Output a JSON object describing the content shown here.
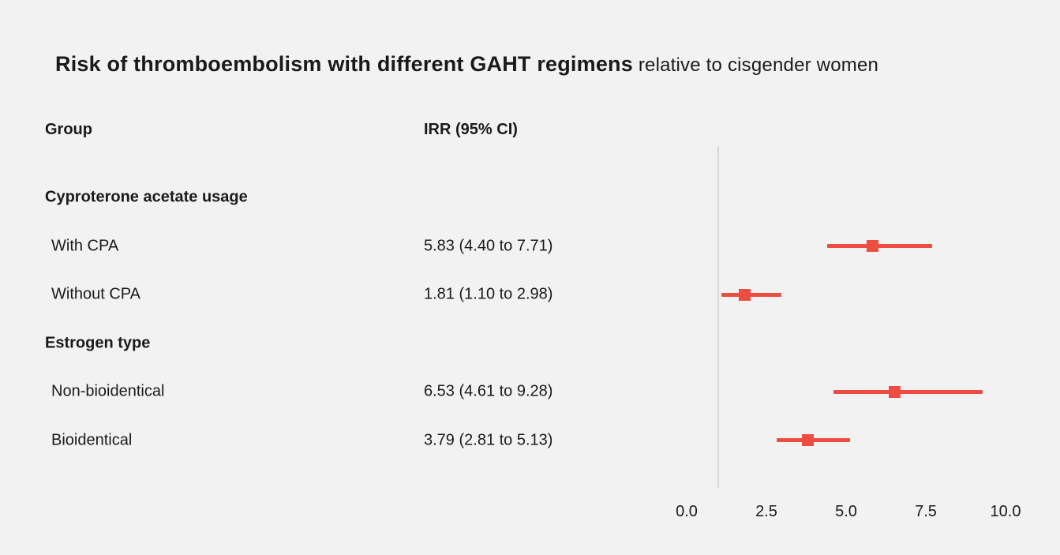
{
  "title": {
    "main": "Risk of thromboembolism with different GAHT regimens",
    "suffix": " relative to cisgender women"
  },
  "columns": {
    "group": "Group",
    "irr": "IRR (95% CI)"
  },
  "chart_data": {
    "type": "forest",
    "title": "Risk of thromboembolism with different GAHT regimens relative to cisgender women",
    "xlabel": "",
    "xlim": [
      0,
      10
    ],
    "x_ticks": [
      0.0,
      2.5,
      5.0,
      7.5,
      10.0
    ],
    "x_tick_labels": [
      "0.0",
      "2.5",
      "5.0",
      "7.5",
      "10.0"
    ],
    "reference_line": 1.0,
    "marker_color": "#ee4e42",
    "groups": [
      {
        "heading": "Cyproterone acetate usage",
        "rows": [
          {
            "label": "With CPA",
            "display": "5.83 (4.40 to 7.71)",
            "irr": 5.83,
            "ci_low": 4.4,
            "ci_high": 7.71
          },
          {
            "label": "Without CPA",
            "display": "1.81 (1.10 to 2.98)",
            "irr": 1.81,
            "ci_low": 1.1,
            "ci_high": 2.98
          }
        ]
      },
      {
        "heading": "Estrogen type",
        "rows": [
          {
            "label": "Non-bioidentical",
            "display": "6.53 (4.61 to 9.28)",
            "irr": 6.53,
            "ci_low": 4.61,
            "ci_high": 9.28
          },
          {
            "label": "Bioidentical",
            "display": "3.79 (2.81 to 5.13)",
            "irr": 3.79,
            "ci_low": 2.81,
            "ci_high": 5.13
          }
        ]
      }
    ]
  }
}
